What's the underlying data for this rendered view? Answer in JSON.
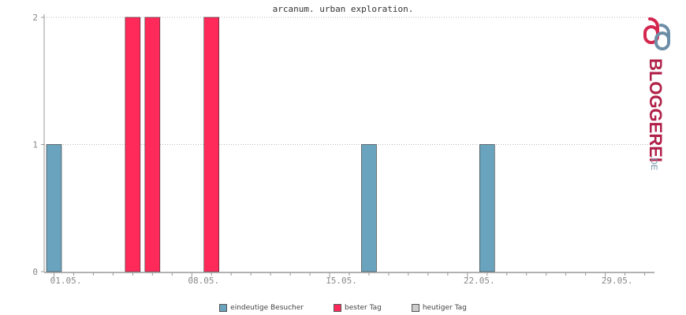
{
  "chart_data": {
    "type": "bar",
    "title": "arcanum. urban exploration.",
    "categories": [
      "01.05.",
      "02.05.",
      "03.05.",
      "04.05.",
      "05.05.",
      "06.05.",
      "07.05.",
      "08.05.",
      "09.05.",
      "10.05.",
      "11.05.",
      "12.05.",
      "13.05.",
      "14.05.",
      "15.05.",
      "16.05.",
      "17.05.",
      "18.05.",
      "19.05.",
      "20.05.",
      "21.05.",
      "22.05.",
      "23.05.",
      "24.05.",
      "25.05.",
      "26.05.",
      "27.05.",
      "28.05.",
      "29.05.",
      "30.05.",
      "31.05."
    ],
    "x_tick_labels": [
      "01.05.",
      "08.05.",
      "15.05.",
      "22.05.",
      "29.05."
    ],
    "x_tick_every": 7,
    "series": [
      {
        "name": "eindeutige Besucher",
        "color": "#6aa3bd",
        "values": [
          1,
          0,
          0,
          0,
          0,
          0,
          0,
          0,
          0,
          0,
          0,
          0,
          0,
          0,
          0,
          0,
          1,
          0,
          0,
          0,
          0,
          0,
          1,
          0,
          0,
          0,
          0,
          0,
          0,
          0,
          0
        ]
      },
      {
        "name": "bester Tag",
        "color": "#ff2a5a",
        "values": [
          0,
          0,
          0,
          0,
          2,
          2,
          0,
          0,
          2,
          0,
          0,
          0,
          0,
          0,
          0,
          0,
          0,
          0,
          0,
          0,
          0,
          0,
          0,
          0,
          0,
          0,
          0,
          0,
          0,
          0,
          0
        ]
      },
      {
        "name": "heutiger Tag",
        "color": "#cccccc",
        "values": [
          0,
          0,
          0,
          0,
          0,
          0,
          0,
          0,
          0,
          0,
          0,
          0,
          0,
          0,
          0,
          0,
          0,
          0,
          0,
          0,
          0,
          0,
          0,
          0,
          0,
          0,
          0,
          0,
          0,
          0,
          0
        ]
      }
    ],
    "y_ticks": [
      0,
      1,
      2
    ],
    "ylim": [
      0,
      2
    ],
    "grid": true,
    "legend_position": "bottom"
  },
  "logo": {
    "text": "BLOGGEREI",
    "suffix": ".DE"
  }
}
